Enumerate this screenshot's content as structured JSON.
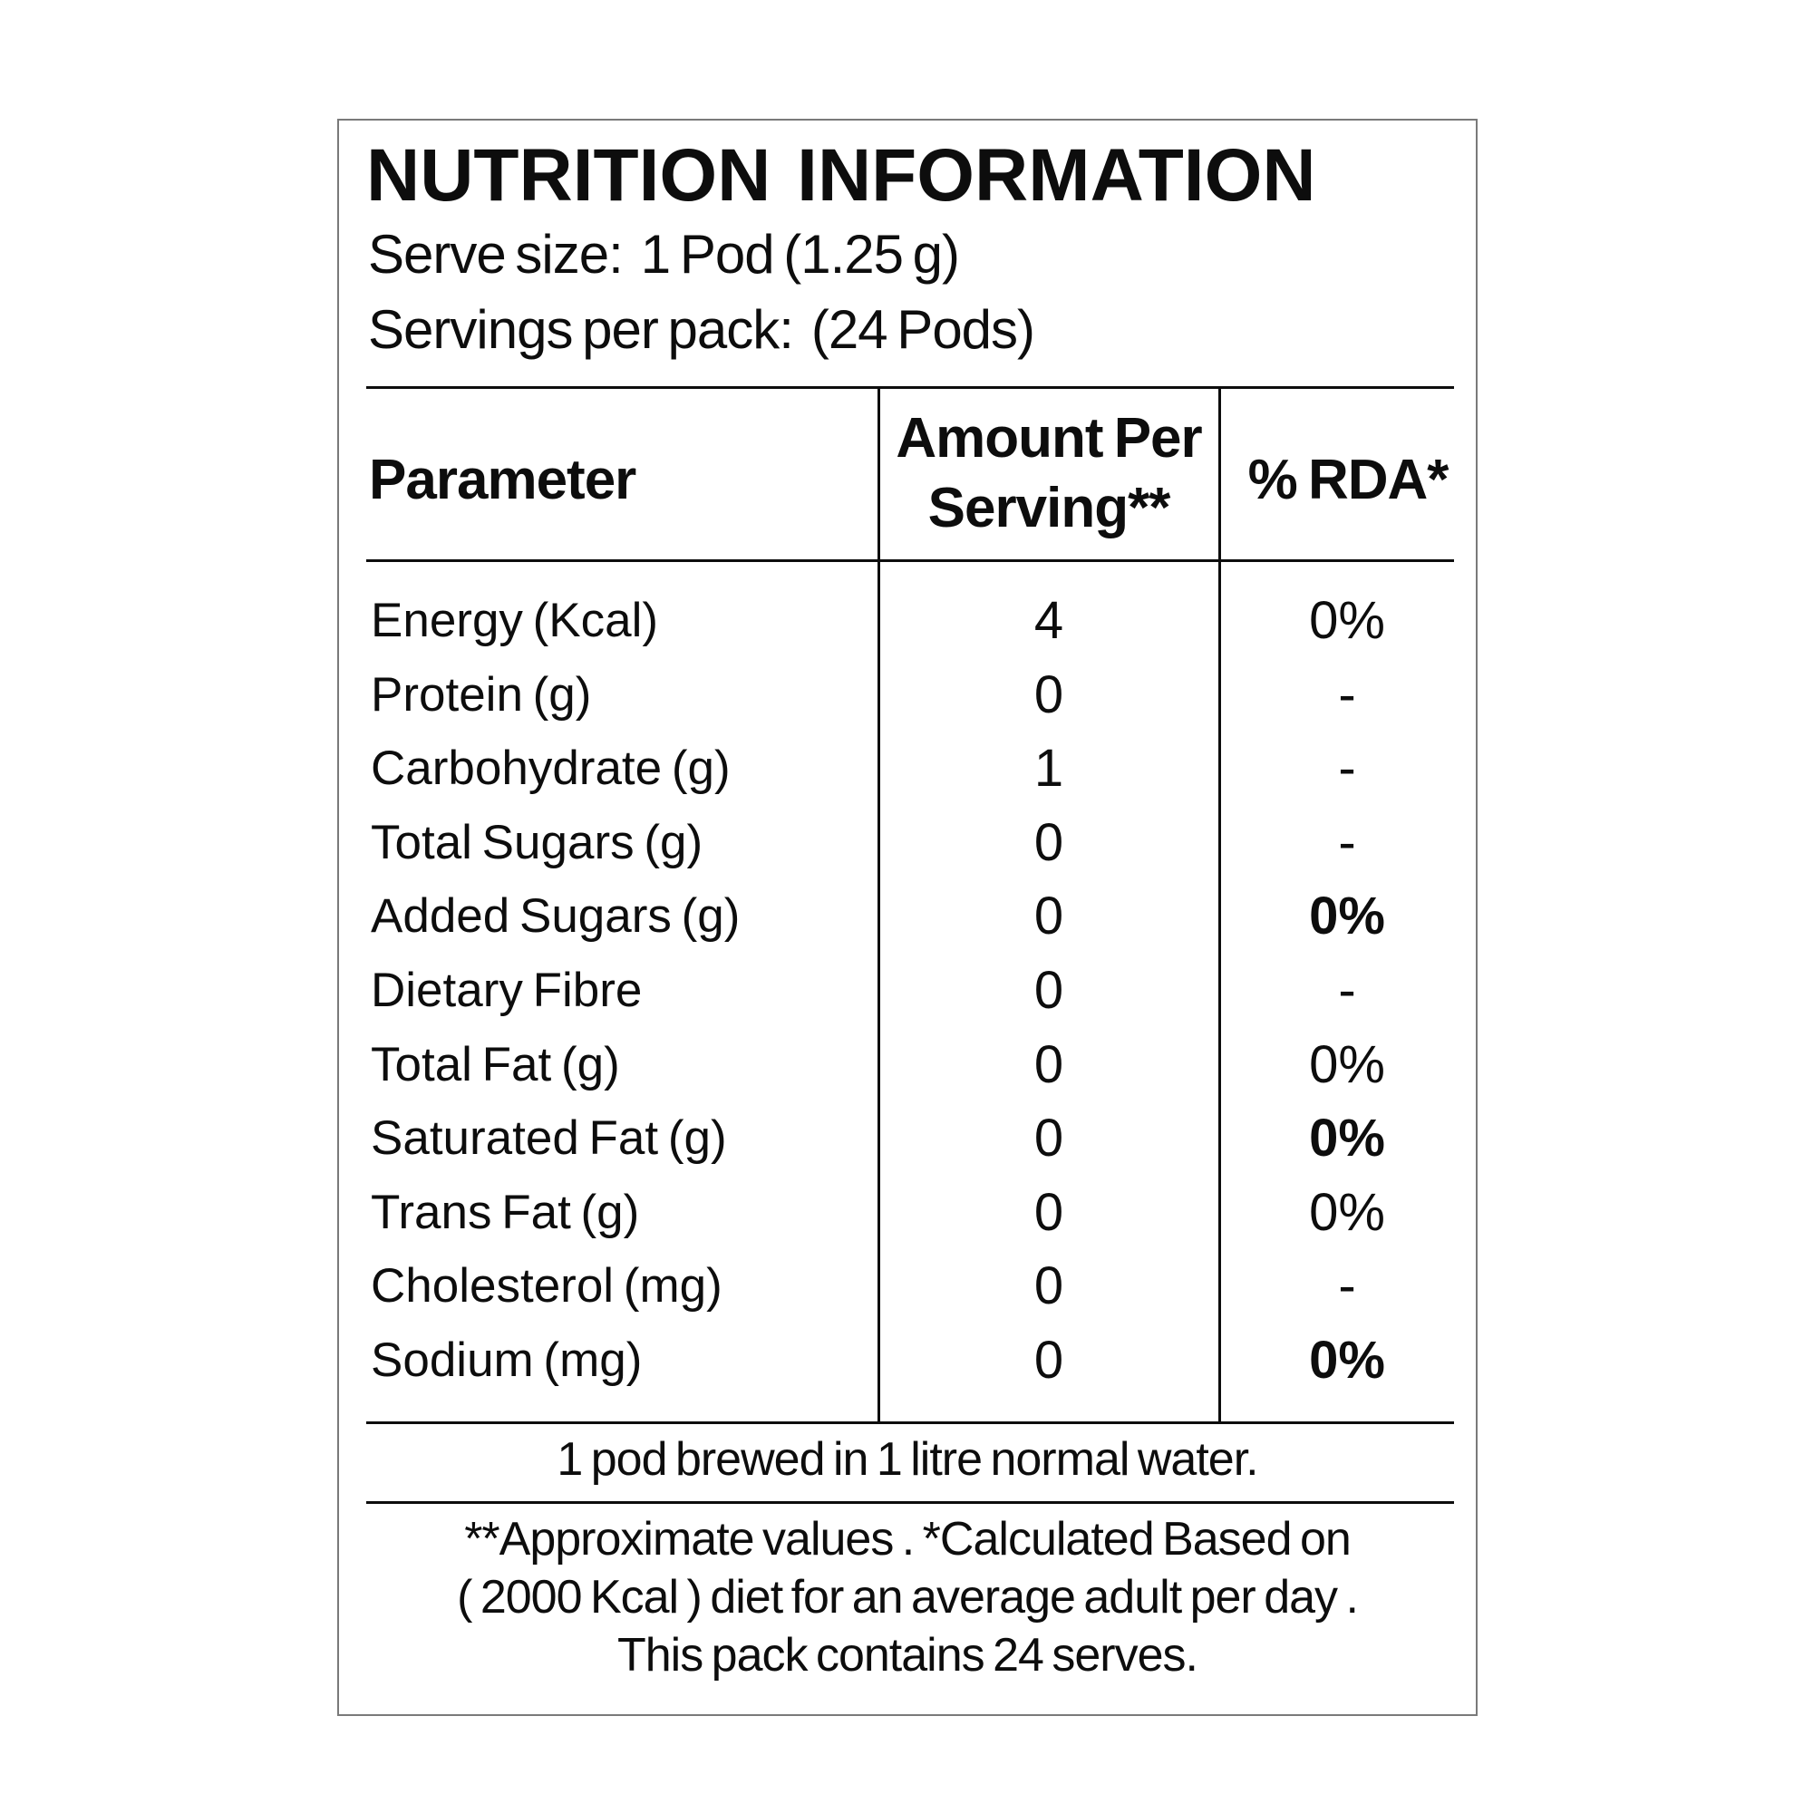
{
  "label": {
    "title": "NUTRITION INFORMATION",
    "serve_size_label": "Serve size:",
    "serve_size_value": "1 Pod (1.25 g)",
    "servings_label": "Servings per pack:",
    "servings_value": "(24 Pods)"
  },
  "table": {
    "headers": {
      "parameter": "Parameter",
      "amount_line1": "Amount Per",
      "amount_line2": "Serving**",
      "rda": "% RDA*"
    },
    "rows": [
      {
        "param": "Energy (Kcal)",
        "amount": "4",
        "rda": "0%",
        "rda_bold": false
      },
      {
        "param": "Protein (g)",
        "amount": "0",
        "rda": "-",
        "rda_bold": false
      },
      {
        "param": "Carbohydrate (g)",
        "amount": "1",
        "rda": "-",
        "rda_bold": false
      },
      {
        "param": "Total Sugars (g)",
        "amount": "0",
        "rda": "-",
        "rda_bold": false
      },
      {
        "param": "Added Sugars (g)",
        "amount": "0",
        "rda": "0%",
        "rda_bold": true
      },
      {
        "param": "Dietary Fibre",
        "amount": "0",
        "rda": "-",
        "rda_bold": false
      },
      {
        "param": "Total Fat (g)",
        "amount": "0",
        "rda": "0%",
        "rda_bold": false
      },
      {
        "param": "Saturated Fat (g)",
        "amount": "0",
        "rda": "0%",
        "rda_bold": true
      },
      {
        "param": "Trans Fat (g)",
        "amount": "0",
        "rda": "0%",
        "rda_bold": false
      },
      {
        "param": "Cholesterol (mg)",
        "amount": "0",
        "rda": "-",
        "rda_bold": false
      },
      {
        "param": "Sodium (mg)",
        "amount": "0",
        "rda": "0%",
        "rda_bold": true
      }
    ]
  },
  "notes": {
    "brew": "1 pod brewed in 1 litre normal water.",
    "footnote_line1": "**Approximate values . *Calculated Based on",
    "footnote_line2": "( 2000 Kcal ) diet for an average adult per day .",
    "footnote_line3": "This pack contains 24 serves."
  },
  "colors": {
    "text": "#0d0d0d",
    "outer_border": "#7a7a7a",
    "rule": "#0d0d0d",
    "background": "#ffffff"
  }
}
